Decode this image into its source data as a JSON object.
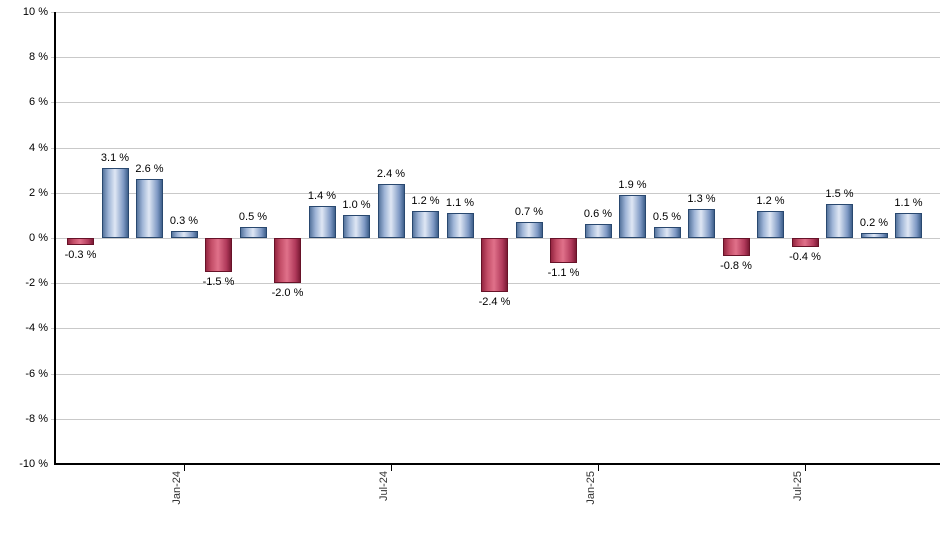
{
  "chart_data": {
    "type": "bar",
    "title": "",
    "xlabel": "",
    "ylabel": "",
    "ylim": [
      -10,
      10
    ],
    "grid": true,
    "legend": "none",
    "background": "#ffffff",
    "values": [
      -0.3,
      3.1,
      2.6,
      0.3,
      -1.5,
      0.5,
      -2.0,
      1.4,
      1.0,
      2.4,
      1.2,
      1.1,
      -2.4,
      0.7,
      -1.1,
      0.6,
      1.9,
      0.5,
      1.3,
      -0.8,
      1.2,
      -0.4,
      1.5,
      0.2,
      1.1
    ],
    "bar_labels": [
      "-0.3 %",
      "3.1 %",
      "2.6 %",
      "0.3 %",
      "-1.5 %",
      "0.5 %",
      "-2.0 %",
      "1.4 %",
      "1.0 %",
      "2.4 %",
      "1.2 %",
      "1.1 %",
      "-2.4 %",
      "0.7 %",
      "-1.1 %",
      "0.6 %",
      "1.9 %",
      "0.5 %",
      "1.3 %",
      "-0.8 %",
      "1.2 %",
      "-0.4 %",
      "1.5 %",
      "0.2 %",
      "1.1 %"
    ],
    "x_ticks": [
      {
        "label": "Jan-24",
        "bar_index": 3
      },
      {
        "label": "Jul-24",
        "bar_index": 9
      },
      {
        "label": "Jan-25",
        "bar_index": 15
      },
      {
        "label": "Jul-25",
        "bar_index": 21
      }
    ],
    "y_ticks": [
      "10 %",
      "8 %",
      "6 %",
      "4 %",
      "2 %",
      "0 %",
      "-2 %",
      "-4 %",
      "-6 %",
      "-8 %",
      "-10 %"
    ],
    "colors": {
      "positive_gradient": [
        "#56759e",
        "#9eb4d6",
        "#dfe7f4",
        "#7e99c4",
        "#3f608c"
      ],
      "positive_border": "#29486f",
      "negative_gradient": [
        "#952641",
        "#c44e68",
        "#e0718a",
        "#b0395a",
        "#7c1b35"
      ],
      "negative_border": "#671228",
      "gridline": "#c9c9c9",
      "axis": "#000000",
      "value_label_text": "#000000",
      "tick_label_text": "#333333"
    }
  }
}
